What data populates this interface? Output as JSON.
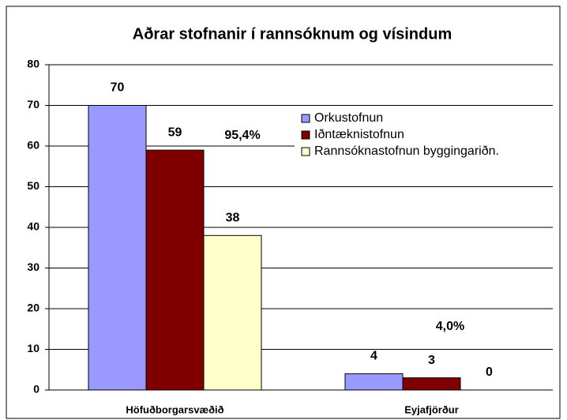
{
  "chart_data": {
    "type": "bar",
    "title": "Aðrar stofnanir í rannsóknum og vísindum",
    "categories": [
      "Höfuðborgarsvæðið",
      "Eyjafjörður"
    ],
    "series": [
      {
        "name": "Orkustofnun",
        "color": "#9999ff",
        "values": [
          70,
          4
        ]
      },
      {
        "name": "Iðntæknistofnun",
        "color": "#800000",
        "values": [
          59,
          3
        ]
      },
      {
        "name": "Rannsóknastofnun byggingariðn.",
        "color": "#ffffcc",
        "values": [
          38,
          0
        ]
      }
    ],
    "annotations": [
      "95,4%",
      "4,0%"
    ],
    "ylim": [
      0,
      80
    ],
    "yticks": [
      0,
      10,
      20,
      30,
      40,
      50,
      60,
      70,
      80
    ],
    "grid": true,
    "legend": "right"
  }
}
